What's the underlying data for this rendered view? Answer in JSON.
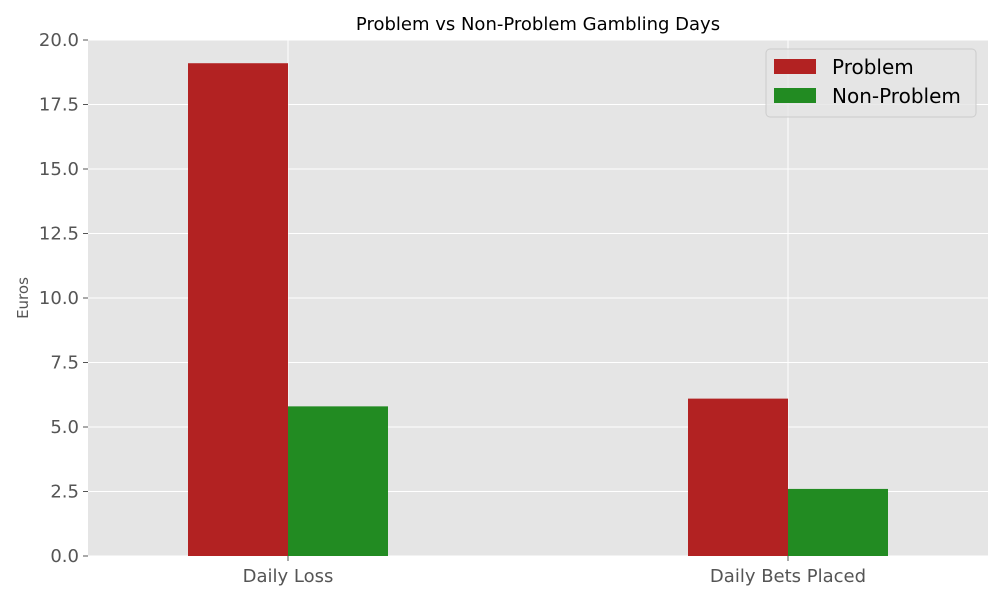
{
  "chart_data": {
    "type": "bar",
    "title": "Problem vs Non-Problem Gambling Days",
    "xlabel": "",
    "ylabel": "Euros",
    "categories": [
      "Daily Loss",
      "Daily Bets Placed"
    ],
    "series": [
      {
        "name": "Problem",
        "values": [
          19.1,
          6.1
        ],
        "color": "#b22222"
      },
      {
        "name": "Non-Problem",
        "values": [
          5.8,
          2.6
        ],
        "color": "#228b22"
      }
    ],
    "ylim": [
      0,
      20
    ],
    "yticks": [
      "0.0",
      "2.5",
      "5.0",
      "7.5",
      "10.0",
      "12.5",
      "15.0",
      "17.5",
      "20.0"
    ],
    "grid": true,
    "legend_position": "top-right",
    "plot_background": "#e5e5e5",
    "grid_color": "#ffffff"
  }
}
